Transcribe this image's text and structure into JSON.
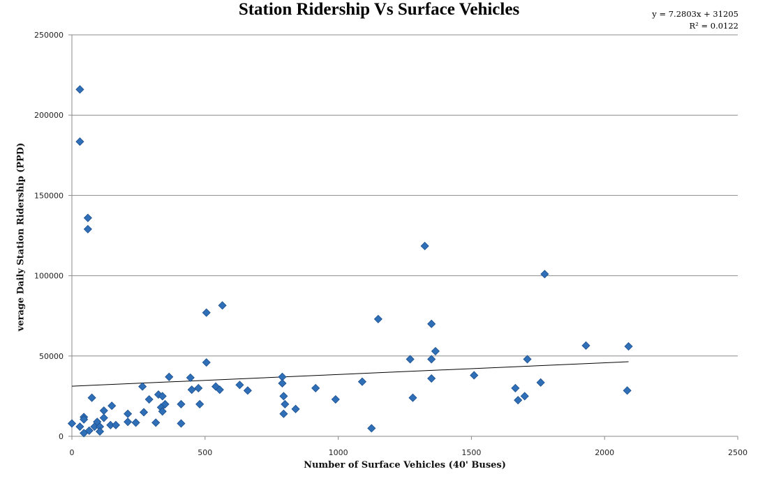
{
  "chart_data": {
    "type": "scatter",
    "title": "Station Ridership Vs Surface Vehicles",
    "xlabel": "Number of Surface Vehicles (40' Buses)",
    "ylabel": "verage Daily Station Ridership (PPD)",
    "xlim": [
      0,
      2500
    ],
    "ylim": [
      0,
      250000
    ],
    "x_ticks": [
      "0",
      "500",
      "1000",
      "1500",
      "2000",
      "2500"
    ],
    "y_ticks": [
      "0",
      "50000",
      "100000",
      "150000",
      "200000",
      "250000"
    ],
    "grid": "horizontal",
    "marker_color": "#2f6fb8",
    "trendline": {
      "equation": "y = 7.2803x + 31205",
      "r_squared": "R² = 0.0122",
      "slope": 7.2803,
      "intercept": 31205,
      "x_range": [
        0,
        2090
      ]
    },
    "series": [
      {
        "points": [
          [
            0,
            8000
          ],
          [
            30,
            216000
          ],
          [
            30,
            183500
          ],
          [
            30,
            6000
          ],
          [
            45,
            12000
          ],
          [
            45,
            10500
          ],
          [
            45,
            2000
          ],
          [
            60,
            136000
          ],
          [
            60,
            129000
          ],
          [
            65,
            3500
          ],
          [
            75,
            24000
          ],
          [
            85,
            6000
          ],
          [
            95,
            9000
          ],
          [
            105,
            6000
          ],
          [
            105,
            3000
          ],
          [
            120,
            16000
          ],
          [
            120,
            11500
          ],
          [
            145,
            7000
          ],
          [
            150,
            19000
          ],
          [
            165,
            7000
          ],
          [
            210,
            14000
          ],
          [
            210,
            9000
          ],
          [
            240,
            8500
          ],
          [
            265,
            31000
          ],
          [
            270,
            15000
          ],
          [
            290,
            23000
          ],
          [
            315,
            8500
          ],
          [
            325,
            26000
          ],
          [
            335,
            18000
          ],
          [
            340,
            25000
          ],
          [
            340,
            15500
          ],
          [
            350,
            20000
          ],
          [
            365,
            37000
          ],
          [
            410,
            20000
          ],
          [
            410,
            8000
          ],
          [
            445,
            36500
          ],
          [
            450,
            29000
          ],
          [
            475,
            30000
          ],
          [
            480,
            20000
          ],
          [
            505,
            77000
          ],
          [
            505,
            46000
          ],
          [
            540,
            31000
          ],
          [
            555,
            29000
          ],
          [
            565,
            81500
          ],
          [
            630,
            32000
          ],
          [
            660,
            28500
          ],
          [
            790,
            37000
          ],
          [
            790,
            33000
          ],
          [
            795,
            14000
          ],
          [
            795,
            25000
          ],
          [
            800,
            20000
          ],
          [
            840,
            17000
          ],
          [
            915,
            30000
          ],
          [
            990,
            23000
          ],
          [
            1090,
            34000
          ],
          [
            1125,
            5000
          ],
          [
            1150,
            73000
          ],
          [
            1270,
            48000
          ],
          [
            1280,
            24000
          ],
          [
            1325,
            118500
          ],
          [
            1350,
            70000
          ],
          [
            1350,
            48000
          ],
          [
            1350,
            36000
          ],
          [
            1365,
            53000
          ],
          [
            1510,
            38000
          ],
          [
            1665,
            30000
          ],
          [
            1675,
            22500
          ],
          [
            1700,
            25000
          ],
          [
            1710,
            48000
          ],
          [
            1760,
            33500
          ],
          [
            1775,
            101000
          ],
          [
            1930,
            56500
          ],
          [
            2085,
            28500
          ],
          [
            2090,
            56000
          ]
        ]
      }
    ]
  }
}
